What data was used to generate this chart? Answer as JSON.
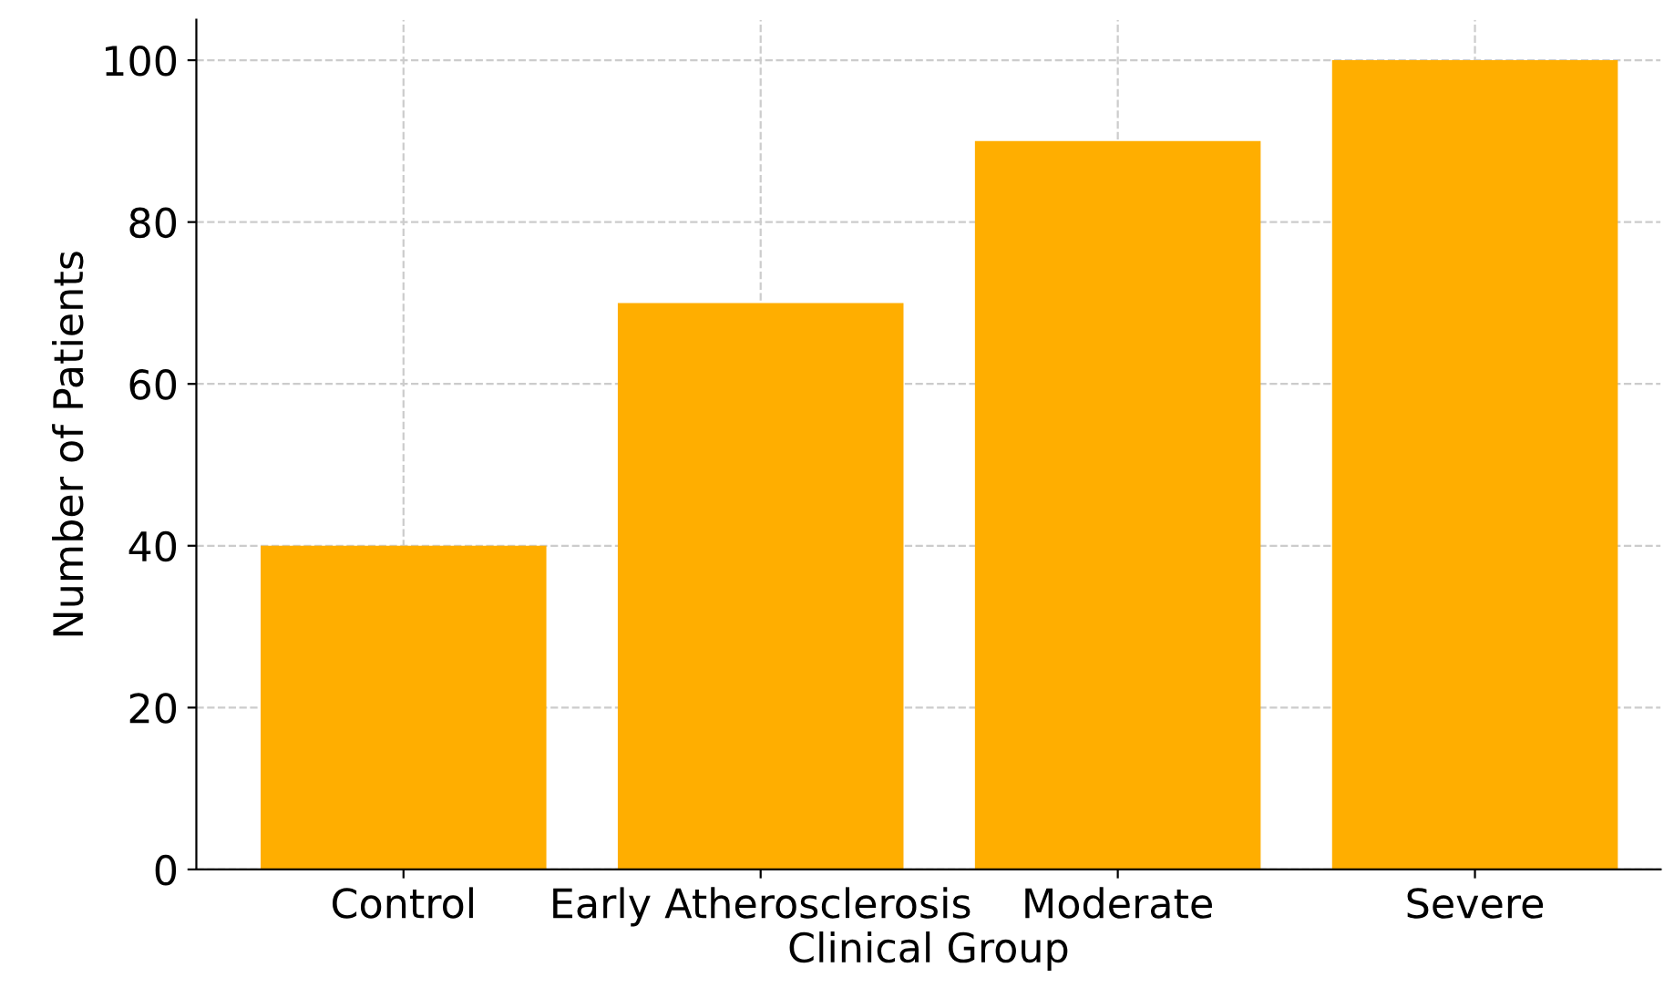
{
  "chart_data": {
    "type": "bar",
    "xlabel": "Clinical Group",
    "ylabel": "Number of Patients",
    "categories": [
      "Control",
      "Early Atherosclerosis",
      "Moderate",
      "Severe"
    ],
    "values": [
      40,
      70,
      90,
      100
    ],
    "color": "#ffae00",
    "ylim": [
      0,
      105
    ],
    "yticks": [
      0,
      20,
      40,
      60,
      80,
      100
    ],
    "grid": true
  }
}
